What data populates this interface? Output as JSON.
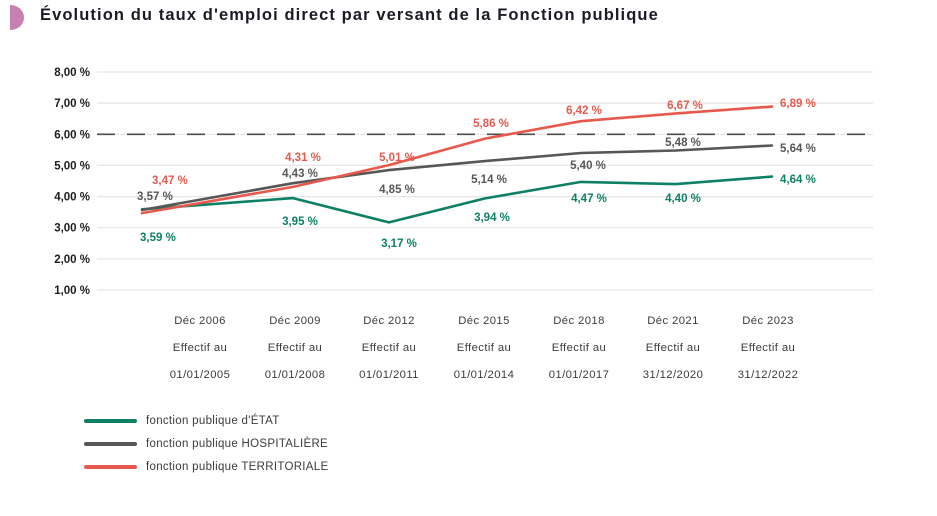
{
  "page": {
    "title": "Évolution du taux d'emploi direct par versant de la Fonction publique"
  },
  "colors": {
    "accent_bullet": "#c87fb2",
    "gridline": "#e8e6e3",
    "target_line": "#4d4d4d",
    "axis_text": "#3c3c3b",
    "tick_text": "#1d1d1b"
  },
  "chart_data": {
    "type": "line",
    "title": "Évolution du taux d'emploi direct par versant de la Fonction publique",
    "categories": [
      [
        "Déc 2006",
        "Effectif au",
        "01/01/2005"
      ],
      [
        "Déc 2009",
        "Effectif au",
        "01/01/2008"
      ],
      [
        "Déc 2012",
        "Effectif au",
        "01/01/2011"
      ],
      [
        "Déc 2015",
        "Effectif au",
        "01/01/2014"
      ],
      [
        "Déc 2018",
        "Effectif au",
        "01/01/2017"
      ],
      [
        "Déc 2021",
        "Effectif au",
        "31/12/2020"
      ],
      [
        "Déc 2023",
        "Effectif au",
        "31/12/2022"
      ]
    ],
    "series": [
      {
        "name": "fonction publique d'ÉTAT",
        "color": "#0e8066",
        "values": [
          3.59,
          3.95,
          3.17,
          3.94,
          4.47,
          4.4,
          4.64
        ],
        "point_labels": [
          "3,59 %",
          "3,95 %",
          "3,17 %",
          "3,94 %",
          "4,47 %",
          "4,40 %",
          "4,64 %"
        ]
      },
      {
        "name": "fonction publique HOSPITALIÈRE",
        "color": "#575756",
        "values": [
          3.57,
          4.43,
          4.85,
          5.14,
          5.4,
          5.48,
          5.64
        ],
        "point_labels": [
          "3,57 %",
          "4,43 %",
          "4,85 %",
          "5,14 %",
          "5,40 %",
          "5,48 %",
          "5,64 %"
        ]
      },
      {
        "name": "fonction publique TERRITORIALE",
        "color": "#e8594d",
        "values": [
          3.47,
          4.31,
          5.01,
          5.86,
          6.42,
          6.67,
          6.89
        ],
        "point_labels": [
          "3,47 %",
          "4,31 %",
          "5,01 %",
          "5,86 %",
          "6,42 %",
          "6,67 %",
          "6,89 %"
        ]
      }
    ],
    "y_axis": {
      "min": 1,
      "max": 8,
      "step": 1,
      "tick_labels": [
        "8,00 %",
        "7,00 %",
        "6,00 %",
        "5,00 %",
        "4,00 %",
        "3,00 %",
        "2,00 %",
        "1,00 %"
      ]
    },
    "target_line": {
      "value": 6,
      "style": "dashed"
    },
    "grid": "horizontal",
    "legend_position": "bottom-left"
  }
}
